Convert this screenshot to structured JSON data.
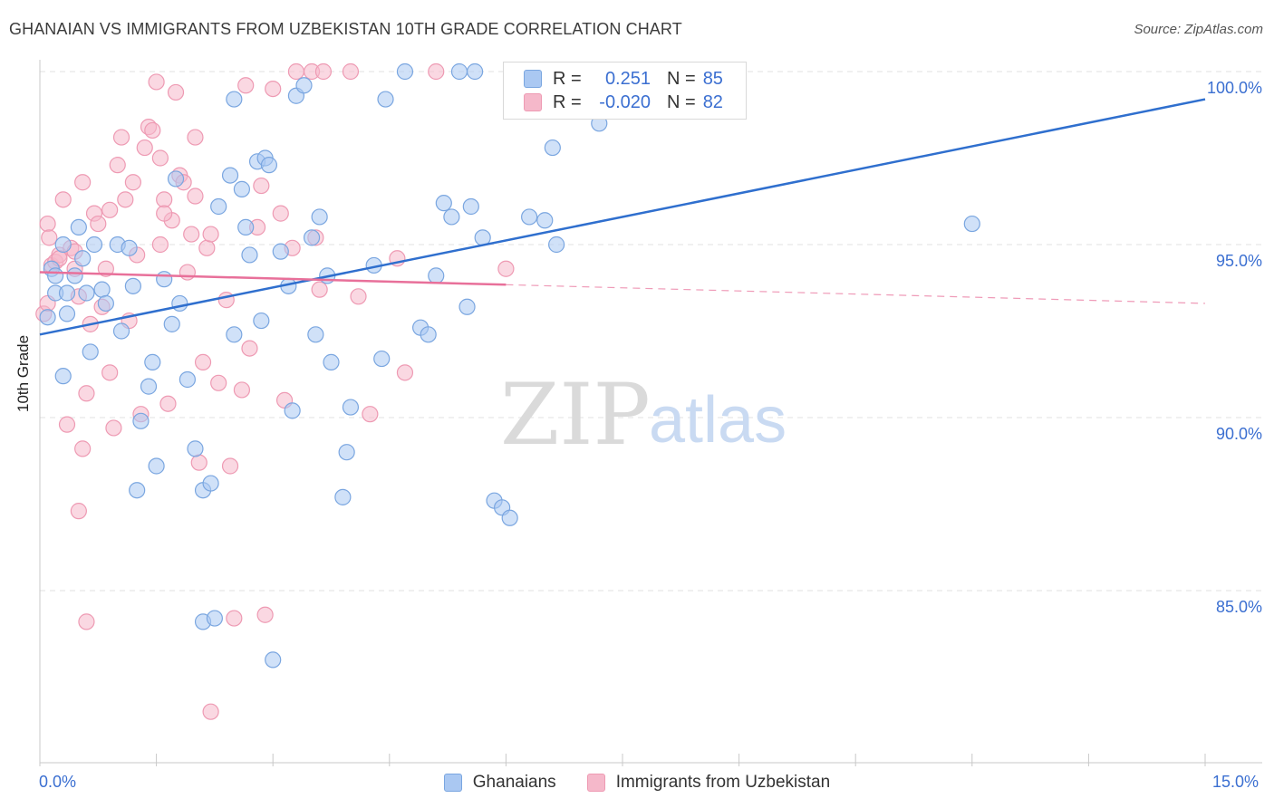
{
  "title": "GHANAIAN VS IMMIGRANTS FROM UZBEKISTAN 10TH GRADE CORRELATION CHART",
  "source": "Source: ZipAtlas.com",
  "watermark": {
    "zip": "ZIP",
    "atlas": "atlas"
  },
  "legend_top": {
    "rows": [
      {
        "r_label": "R =",
        "r_value": "0.251",
        "n_label": "N =",
        "n_value": "85"
      },
      {
        "r_label": "R =",
        "r_value": "-0.020",
        "n_label": "N =",
        "n_value": "82"
      }
    ]
  },
  "legend_bottom": {
    "series_a": "Ghanaians",
    "series_b": "Immigrants from Uzbekistan"
  },
  "colors": {
    "blue_fill": "#aac8f2",
    "blue_stroke": "#7aa6e0",
    "blue_line": "#2f6fce",
    "pink_fill": "#f5b8ca",
    "pink_stroke": "#ee9ab3",
    "pink_line": "#e8709a",
    "tick_text": "#3b6fd1",
    "grid": "#e2e2e2"
  },
  "chart_data": {
    "type": "scatter",
    "title": "GHANAIAN VS IMMIGRANTS FROM UZBEKISTAN 10TH GRADE CORRELATION CHART",
    "xlabel": "",
    "ylabel": "10th Grade",
    "x_tick_labels": {
      "min": "0.0%",
      "max": "15.0%"
    },
    "y_tick_labels": [
      "100.0%",
      "95.0%",
      "90.0%",
      "85.0%"
    ],
    "y_tick_values": [
      100.0,
      95.0,
      90.0,
      85.0
    ],
    "xlim": [
      0,
      15
    ],
    "ylim": [
      80.5,
      101.0
    ],
    "grid": true,
    "legend_position": "top-center",
    "series": [
      {
        "name": "Ghanaians",
        "trend": {
          "x": [
            0,
            15
          ],
          "y": [
            92.4,
            99.2
          ],
          "dashed_after": null
        },
        "points": [
          [
            0.2,
            93.6
          ],
          [
            0.1,
            92.9
          ],
          [
            0.15,
            94.3
          ],
          [
            0.2,
            94.1
          ],
          [
            0.3,
            95.0
          ],
          [
            0.35,
            93.6
          ],
          [
            0.45,
            94.1
          ],
          [
            0.5,
            95.5
          ],
          [
            0.55,
            94.6
          ],
          [
            0.6,
            93.6
          ],
          [
            0.65,
            91.9
          ],
          [
            0.7,
            95.0
          ],
          [
            0.8,
            93.7
          ],
          [
            0.85,
            93.3
          ],
          [
            1.0,
            95.0
          ],
          [
            1.05,
            92.5
          ],
          [
            0.35,
            93.0
          ],
          [
            0.3,
            91.2
          ],
          [
            1.2,
            93.8
          ],
          [
            1.3,
            89.9
          ],
          [
            1.4,
            90.9
          ],
          [
            1.5,
            88.6
          ],
          [
            1.25,
            87.9
          ],
          [
            1.45,
            91.6
          ],
          [
            1.6,
            94.0
          ],
          [
            1.7,
            92.7
          ],
          [
            1.75,
            96.9
          ],
          [
            1.8,
            93.3
          ],
          [
            1.9,
            91.1
          ],
          [
            2.0,
            89.1
          ],
          [
            2.1,
            87.9
          ],
          [
            2.2,
            88.1
          ],
          [
            2.3,
            96.1
          ],
          [
            2.1,
            84.1
          ],
          [
            2.25,
            84.2
          ],
          [
            2.45,
            97.0
          ],
          [
            2.5,
            92.4
          ],
          [
            2.5,
            99.2
          ],
          [
            2.6,
            96.6
          ],
          [
            2.65,
            95.5
          ],
          [
            2.7,
            94.7
          ],
          [
            2.8,
            97.4
          ],
          [
            2.9,
            97.5
          ],
          [
            2.95,
            97.3
          ],
          [
            2.85,
            92.8
          ],
          [
            3.0,
            83.0
          ],
          [
            3.1,
            94.8
          ],
          [
            3.2,
            93.8
          ],
          [
            3.25,
            90.2
          ],
          [
            3.3,
            99.3
          ],
          [
            3.4,
            99.6
          ],
          [
            3.5,
            95.2
          ],
          [
            3.55,
            92.4
          ],
          [
            3.6,
            95.8
          ],
          [
            3.7,
            94.1
          ],
          [
            3.75,
            91.6
          ],
          [
            3.9,
            87.7
          ],
          [
            3.95,
            89.0
          ],
          [
            4.0,
            90.3
          ],
          [
            4.3,
            94.4
          ],
          [
            4.4,
            91.7
          ],
          [
            4.45,
            99.2
          ],
          [
            4.7,
            100.0
          ],
          [
            4.9,
            92.6
          ],
          [
            5.0,
            92.4
          ],
          [
            5.1,
            94.1
          ],
          [
            5.2,
            96.2
          ],
          [
            5.3,
            95.8
          ],
          [
            5.4,
            100.0
          ],
          [
            5.5,
            93.2
          ],
          [
            5.55,
            96.1
          ],
          [
            5.6,
            100.0
          ],
          [
            5.7,
            95.2
          ],
          [
            5.85,
            87.6
          ],
          [
            5.95,
            87.4
          ],
          [
            6.05,
            87.1
          ],
          [
            6.25,
            99.8
          ],
          [
            6.3,
            95.8
          ],
          [
            6.5,
            95.7
          ],
          [
            6.6,
            97.8
          ],
          [
            6.65,
            95.0
          ],
          [
            7.0,
            100.0
          ],
          [
            7.2,
            98.5
          ],
          [
            12.0,
            95.6
          ],
          [
            1.15,
            94.9
          ]
        ]
      },
      {
        "name": "Immigrants from Uzbekistan",
        "trend": {
          "x": [
            0,
            15
          ],
          "y": [
            94.2,
            93.3
          ],
          "solid_until": 6.0
        },
        "points": [
          [
            0.05,
            93.0
          ],
          [
            0.1,
            95.6
          ],
          [
            0.12,
            95.2
          ],
          [
            0.15,
            94.4
          ],
          [
            0.2,
            94.5
          ],
          [
            0.25,
            94.7
          ],
          [
            0.3,
            96.3
          ],
          [
            0.35,
            89.8
          ],
          [
            0.4,
            94.9
          ],
          [
            0.45,
            94.3
          ],
          [
            0.5,
            93.5
          ],
          [
            0.55,
            96.8
          ],
          [
            0.6,
            90.7
          ],
          [
            0.65,
            92.7
          ],
          [
            0.7,
            95.9
          ],
          [
            0.75,
            95.6
          ],
          [
            0.5,
            87.3
          ],
          [
            0.6,
            84.1
          ],
          [
            0.55,
            89.1
          ],
          [
            0.8,
            93.2
          ],
          [
            0.85,
            94.3
          ],
          [
            0.9,
            91.3
          ],
          [
            0.95,
            89.7
          ],
          [
            1.0,
            97.3
          ],
          [
            1.05,
            98.1
          ],
          [
            1.1,
            96.3
          ],
          [
            1.15,
            92.8
          ],
          [
            1.2,
            96.8
          ],
          [
            1.25,
            94.7
          ],
          [
            1.3,
            90.1
          ],
          [
            1.35,
            97.8
          ],
          [
            1.4,
            98.4
          ],
          [
            1.45,
            98.3
          ],
          [
            1.5,
            99.7
          ],
          [
            1.55,
            97.5
          ],
          [
            1.6,
            96.3
          ],
          [
            1.65,
            90.4
          ],
          [
            1.7,
            95.7
          ],
          [
            1.75,
            99.4
          ],
          [
            1.8,
            97.0
          ],
          [
            1.85,
            96.8
          ],
          [
            1.9,
            94.2
          ],
          [
            1.95,
            95.3
          ],
          [
            2.0,
            98.1
          ],
          [
            2.05,
            88.7
          ],
          [
            2.1,
            91.6
          ],
          [
            2.15,
            94.9
          ],
          [
            2.2,
            95.3
          ],
          [
            2.3,
            91.0
          ],
          [
            2.4,
            93.4
          ],
          [
            2.45,
            88.6
          ],
          [
            2.5,
            84.2
          ],
          [
            2.6,
            90.8
          ],
          [
            2.65,
            99.6
          ],
          [
            2.7,
            92.0
          ],
          [
            2.8,
            95.5
          ],
          [
            2.85,
            96.7
          ],
          [
            2.9,
            84.3
          ],
          [
            3.0,
            99.5
          ],
          [
            3.1,
            95.9
          ],
          [
            3.15,
            90.5
          ],
          [
            3.25,
            94.9
          ],
          [
            3.3,
            100.0
          ],
          [
            3.5,
            100.0
          ],
          [
            3.55,
            95.2
          ],
          [
            3.6,
            93.7
          ],
          [
            3.65,
            100.0
          ],
          [
            4.0,
            100.0
          ],
          [
            4.1,
            93.5
          ],
          [
            4.25,
            90.1
          ],
          [
            4.6,
            94.6
          ],
          [
            4.7,
            91.3
          ],
          [
            5.1,
            100.0
          ],
          [
            6.0,
            94.3
          ],
          [
            0.1,
            93.3
          ],
          [
            1.55,
            95.0
          ],
          [
            2.2,
            81.5
          ],
          [
            0.25,
            94.6
          ],
          [
            0.45,
            94.8
          ],
          [
            1.6,
            95.9
          ],
          [
            2.0,
            96.4
          ],
          [
            0.9,
            96.0
          ]
        ]
      }
    ]
  }
}
